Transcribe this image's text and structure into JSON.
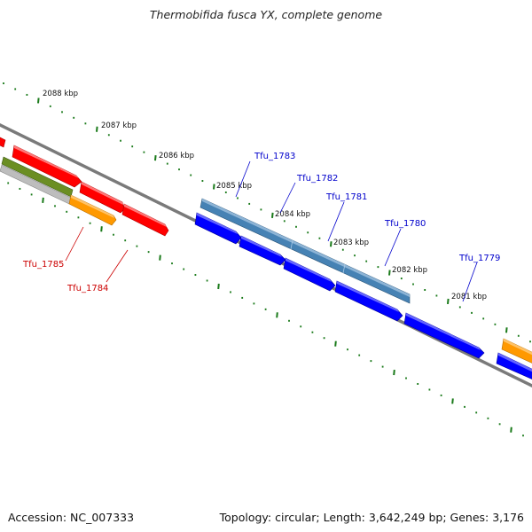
{
  "title": "Thermobifida fusca YX, complete genome",
  "footer": {
    "accession": "Accession: NC_007333",
    "summary": "Topology: circular; Length: 3,642,249 bp; Genes: 3,176"
  },
  "colors": {
    "backbone": "#777777",
    "ticks": "#1a7a1a",
    "red_gene": "#ff0000",
    "orange_gene": "#ff9900",
    "olive_gene": "#6b8e23",
    "grey_gene": "#bbbbbb",
    "steelblue_gene": "#4682b4",
    "blue_gene": "#0000ff",
    "blue_label": "#0000cc",
    "red_label": "#cc0000"
  },
  "ticks": [
    {
      "label": "2088 kbp",
      "pos": 2088
    },
    {
      "label": "2087 kbp",
      "pos": 2087
    },
    {
      "label": "2086 kbp",
      "pos": 2086
    },
    {
      "label": "2085 kbp",
      "pos": 2085
    },
    {
      "label": "2084 kbp",
      "pos": 2084
    },
    {
      "label": "2083 kbp",
      "pos": 2083
    },
    {
      "label": "2082 kbp",
      "pos": 2082
    },
    {
      "label": "2081 kbp",
      "pos": 2081
    }
  ],
  "gene_labels": [
    {
      "text": "Tfu_1783",
      "color": "#0000cc"
    },
    {
      "text": "Tfu_1782",
      "color": "#0000cc"
    },
    {
      "text": "Tfu_1781",
      "color": "#0000cc"
    },
    {
      "text": "Tfu_1780",
      "color": "#0000cc"
    },
    {
      "text": "Tfu_1779",
      "color": "#0000cc"
    },
    {
      "text": "Tfu_1785",
      "color": "#cc0000"
    },
    {
      "text": "Tfu_1784",
      "color": "#cc0000"
    }
  ]
}
